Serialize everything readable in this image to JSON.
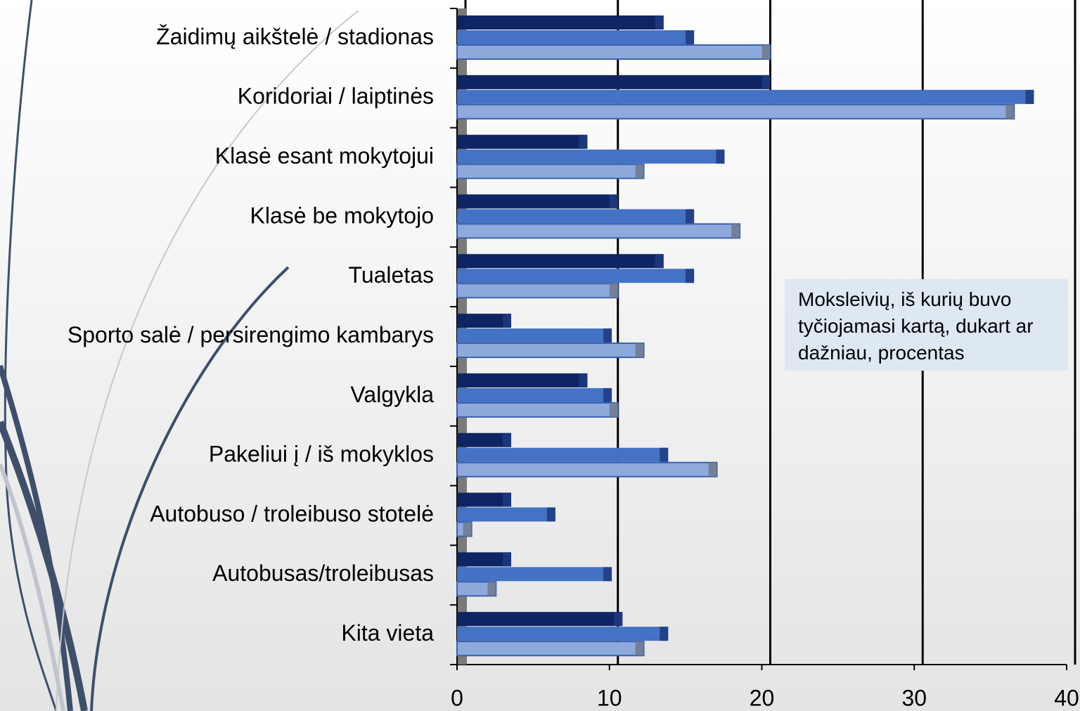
{
  "chart_data": {
    "type": "hbar",
    "categories": [
      "Žaidimų aikštelė / stadionas",
      "Koridoriai / laiptinės",
      "Klasė esant mokytojui",
      "Klasė be mokytojo",
      "Tualetas",
      "Sporto salė / persirengimo kambarys",
      "Valgykla",
      "Pakeliui į / iš mokyklos",
      "Autobuso / troleibuso stotelė",
      "Autobusas/troleibusas",
      "Kita vieta"
    ],
    "series": [
      {
        "color": "#0f2462",
        "values": [
          13,
          20,
          8,
          10,
          13,
          3,
          8,
          3,
          3,
          3,
          10.3
        ]
      },
      {
        "color": "#4472c4",
        "values": [
          15,
          37.3,
          17,
          15,
          15,
          9.6,
          9.6,
          13.3,
          5.9,
          9.6,
          13.3
        ]
      },
      {
        "color": "#8eaadc",
        "values": [
          20,
          36,
          11.7,
          18,
          10,
          11.7,
          10,
          16.5,
          0.4,
          2,
          11.7
        ]
      }
    ],
    "xlim": [
      0,
      40
    ],
    "xticks": [
      0,
      10,
      20,
      30,
      40
    ],
    "grid": true,
    "annotation": "Moksleivių, iš kurių buvo tyčiojamasi kartą, dukart ar dažniau, procentas"
  }
}
